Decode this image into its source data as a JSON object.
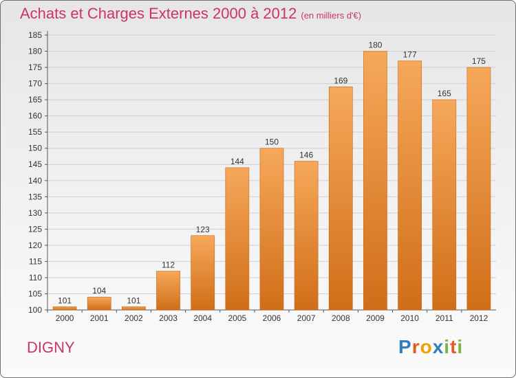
{
  "header": {
    "title": "Achats et Charges Externes 2000 à 2012",
    "unit": "(en milliers d'€)"
  },
  "commune": "DIGNY",
  "logo": {
    "text": "Proxiti",
    "letters": [
      {
        "ch": "P",
        "color": "#2f7fc1"
      },
      {
        "ch": "r",
        "color": "#e05b2a"
      },
      {
        "ch": "o",
        "color": "#f0a000"
      },
      {
        "ch": "x",
        "color": "#2f7fc1"
      },
      {
        "ch": "i",
        "color": "#7cb342"
      },
      {
        "ch": "t",
        "color": "#e05b2a"
      },
      {
        "ch": "i",
        "color": "#7cb342"
      }
    ]
  },
  "colors": {
    "bar_light": "#f6a85a",
    "bar_dark": "#d06e18",
    "grid": "#cfcfcf",
    "accent": "#cc3366"
  },
  "chart_data": {
    "type": "bar",
    "categories": [
      "2000",
      "2001",
      "2002",
      "2003",
      "2004",
      "2005",
      "2006",
      "2007",
      "2008",
      "2009",
      "2010",
      "2011",
      "2012"
    ],
    "values": [
      101,
      104,
      101,
      112,
      123,
      144,
      150,
      146,
      169,
      180,
      177,
      165,
      175
    ],
    "ylim": [
      100,
      185
    ],
    "yticks": [
      100,
      105,
      110,
      115,
      120,
      125,
      130,
      135,
      140,
      145,
      150,
      155,
      160,
      165,
      170,
      175,
      180,
      185
    ],
    "grid": true,
    "data_labels": true
  }
}
